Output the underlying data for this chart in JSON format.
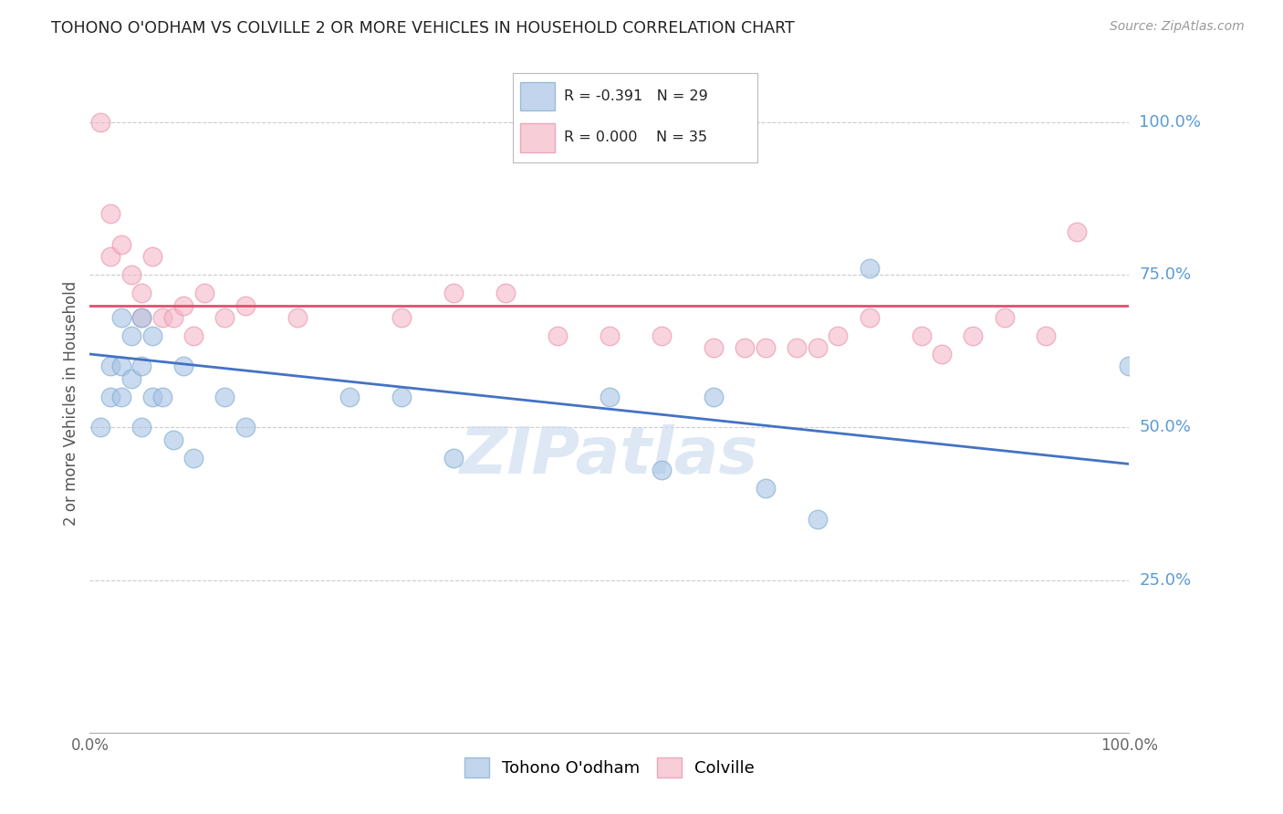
{
  "title": "TOHONO O'ODHAM VS COLVILLE 2 OR MORE VEHICLES IN HOUSEHOLD CORRELATION CHART",
  "source": "Source: ZipAtlas.com",
  "ylabel": "2 or more Vehicles in Household",
  "blue_color": "#a8c4e5",
  "blue_edge_color": "#7baad0",
  "pink_color": "#f4b8c8",
  "pink_edge_color": "#e890a8",
  "trendline_blue_color": "#4472c4",
  "trendline_pink_color": "#e05070",
  "watermark_text": "ZIPatlas",
  "background_color": "#ffffff",
  "grid_color": "#cccccc",
  "right_label_color": "#5b9bd5",
  "tohono_points_x": [
    1,
    2,
    2,
    3,
    3,
    3,
    4,
    4,
    5,
    5,
    5,
    6,
    6,
    7,
    8,
    9,
    10,
    13,
    15,
    25,
    30,
    35,
    50,
    55,
    60,
    65,
    70,
    75,
    100
  ],
  "tohono_points_y": [
    50,
    55,
    60,
    55,
    60,
    68,
    58,
    65,
    50,
    60,
    68,
    55,
    65,
    55,
    48,
    60,
    45,
    55,
    50,
    55,
    55,
    45,
    55,
    43,
    55,
    40,
    35,
    76,
    60
  ],
  "colville_points_x": [
    1,
    2,
    2,
    3,
    4,
    5,
    5,
    6,
    7,
    8,
    9,
    10,
    11,
    13,
    15,
    20,
    30,
    35,
    40,
    45,
    50,
    55,
    60,
    63,
    65,
    68,
    70,
    72,
    75,
    80,
    82,
    85,
    88,
    92,
    95
  ],
  "colville_points_y": [
    100,
    85,
    78,
    80,
    75,
    72,
    68,
    78,
    68,
    68,
    70,
    65,
    72,
    68,
    70,
    68,
    68,
    72,
    72,
    65,
    65,
    65,
    63,
    63,
    63,
    63,
    63,
    65,
    68,
    65,
    62,
    65,
    68,
    65,
    82
  ],
  "ylim": [
    0,
    108
  ],
  "xlim": [
    0,
    100
  ],
  "pink_hline_y": 70,
  "blue_trendline_x0": 0,
  "blue_trendline_y0": 62,
  "blue_trendline_x1": 100,
  "blue_trendline_y1": 44
}
